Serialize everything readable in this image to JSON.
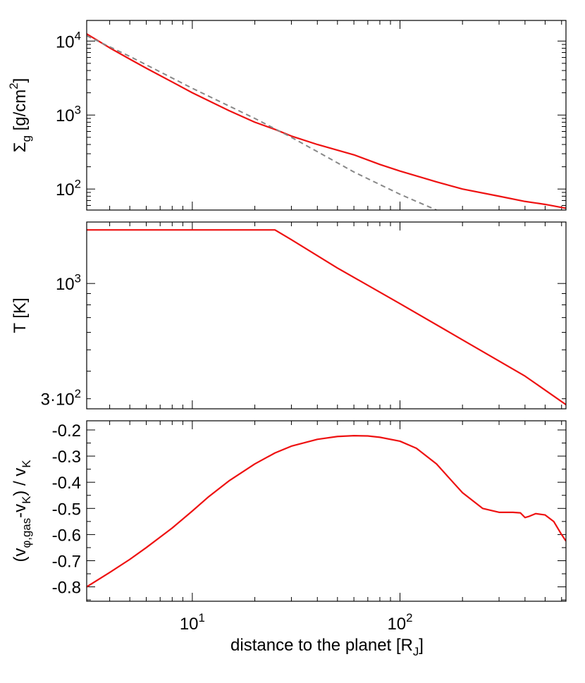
{
  "xlabel": "distance to the planet [R_J]",
  "chart_data": [
    {
      "type": "line",
      "ylabel": "Σ_g [g/cm^2]",
      "xscale": "log",
      "yscale": "log",
      "xlim": [
        3.1,
        630
      ],
      "ylim": [
        52,
        19000
      ],
      "xticks": [
        10,
        100
      ],
      "yticks": [
        100,
        1000,
        10000
      ],
      "series": [
        {
          "color": "#ee1111",
          "style": "solid",
          "x": [
            3.1,
            4,
            5,
            6,
            8,
            10,
            15,
            20,
            25,
            30,
            40,
            50,
            60,
            80,
            100,
            150,
            200,
            300,
            400,
            500,
            630
          ],
          "y": [
            12500,
            8100,
            5700,
            4300,
            2800,
            2000,
            1150,
            800,
            640,
            520,
            400,
            335,
            290,
            215,
            175,
            125,
            100,
            80,
            68,
            62,
            55
          ]
        },
        {
          "color": "#888888",
          "style": "dashed",
          "x": [
            3.1,
            5,
            10,
            20,
            30,
            40,
            60,
            80,
            100,
            120,
            150
          ],
          "y": [
            11800,
            6200,
            2300,
            900,
            500,
            320,
            170,
            115,
            85,
            68,
            52
          ]
        }
      ]
    },
    {
      "type": "line",
      "ylabel": "T [K]",
      "xscale": "log",
      "yscale": "log",
      "xlim": [
        3.1,
        630
      ],
      "ylim": [
        270,
        1900
      ],
      "xticks": [
        10,
        100
      ],
      "yticks": [
        300,
        1000
      ],
      "ytick_labels": [
        "3·10^2",
        "10^3"
      ],
      "series": [
        {
          "color": "#ee1111",
          "style": "solid",
          "x": [
            3.1,
            5,
            10,
            20,
            25,
            30,
            50,
            100,
            200,
            400,
            630
          ],
          "y": [
            1750,
            1750,
            1750,
            1750,
            1750,
            1580,
            1175,
            810,
            555,
            380,
            282
          ]
        }
      ]
    },
    {
      "type": "line",
      "ylabel": "(v_φ,gas-v_K) / v_K",
      "xscale": "log",
      "yscale": "linear",
      "xlim": [
        3.1,
        630
      ],
      "ylim": [
        -0.855,
        -0.165
      ],
      "xticks": [
        10,
        100
      ],
      "yticks": [
        -0.8,
        -0.7,
        -0.6,
        -0.5,
        -0.4,
        -0.3,
        -0.2
      ],
      "series": [
        {
          "color": "#ee1111",
          "style": "solid",
          "x": [
            3.1,
            4,
            5,
            6,
            8,
            10,
            12,
            15,
            20,
            25,
            30,
            40,
            50,
            60,
            70,
            80,
            100,
            120,
            150,
            180,
            200,
            250,
            300,
            350,
            380,
            400,
            420,
            450,
            500,
            550,
            600,
            630
          ],
          "y": [
            -0.8,
            -0.745,
            -0.695,
            -0.65,
            -0.575,
            -0.51,
            -0.455,
            -0.395,
            -0.33,
            -0.288,
            -0.262,
            -0.236,
            -0.225,
            -0.222,
            -0.223,
            -0.228,
            -0.243,
            -0.27,
            -0.33,
            -0.4,
            -0.44,
            -0.5,
            -0.515,
            -0.515,
            -0.517,
            -0.535,
            -0.53,
            -0.52,
            -0.525,
            -0.55,
            -0.6,
            -0.625
          ]
        }
      ]
    }
  ]
}
